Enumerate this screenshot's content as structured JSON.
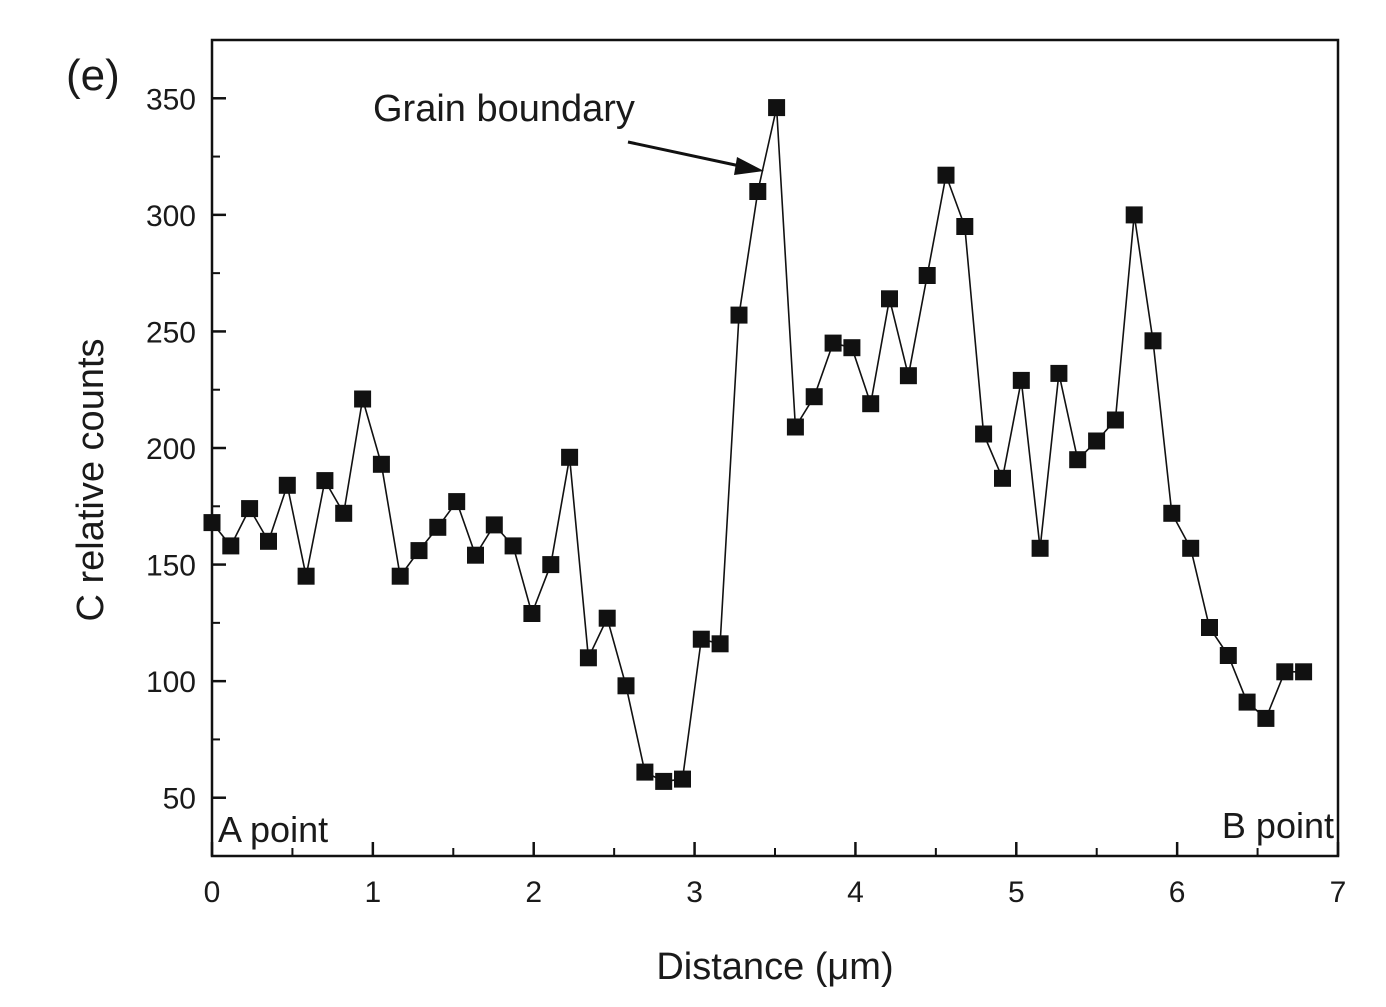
{
  "panel_label": "(e)",
  "colors": {
    "ink": "#111111",
    "background": "#ffffff"
  },
  "chart_data": {
    "type": "line",
    "title": "",
    "xlabel": "Distance (μm)",
    "ylabel": "C relative counts",
    "xlim": [
      0,
      7
    ],
    "ylim": [
      25,
      375
    ],
    "xticks": [
      0,
      1,
      2,
      3,
      4,
      5,
      6,
      7
    ],
    "yticks": [
      50,
      100,
      150,
      200,
      250,
      300,
      350
    ],
    "marker": "square",
    "grid": false,
    "series": [
      {
        "name": "C",
        "x": [
          0,
          0.117,
          0.234,
          0.351,
          0.468,
          0.585,
          0.702,
          0.819,
          0.936,
          1.053,
          1.17,
          1.287,
          1.404,
          1.521,
          1.638,
          1.755,
          1.872,
          1.989,
          2.106,
          2.223,
          2.34,
          2.457,
          2.574,
          2.691,
          2.808,
          2.925,
          3.042,
          3.159,
          3.276,
          3.393,
          3.51,
          3.627,
          3.744,
          3.861,
          3.978,
          4.095,
          4.212,
          4.329,
          4.446,
          4.563,
          4.68,
          4.797,
          4.914,
          5.031,
          5.148,
          5.265,
          5.382,
          5.499,
          5.616,
          5.733,
          5.85,
          5.967,
          6.084,
          6.201,
          6.318,
          6.435,
          6.552,
          6.669,
          6.786
        ],
        "y": [
          168,
          158,
          174,
          160,
          184,
          145,
          186,
          172,
          221,
          193,
          145,
          156,
          166,
          177,
          154,
          167,
          158,
          129,
          150,
          196,
          110,
          127,
          98,
          61,
          57,
          58,
          118,
          116,
          257,
          310,
          346,
          209,
          222,
          245,
          243,
          219,
          264,
          231,
          274,
          317,
          295,
          206,
          187,
          229,
          157,
          232,
          195,
          203,
          212,
          300,
          246,
          172,
          157,
          123,
          111,
          91,
          84,
          104,
          104
        ]
      }
    ],
    "annotations": [
      {
        "text": "Grain boundary",
        "target_x": 3.44,
        "target_y": 318
      }
    ],
    "corner_labels": {
      "left": "A point",
      "right": "B point"
    }
  }
}
